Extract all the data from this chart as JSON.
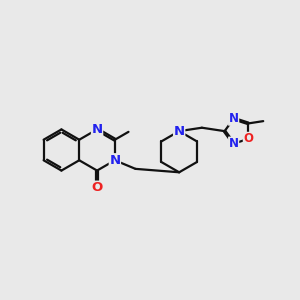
{
  "bg": "#e9e9e9",
  "bc": "#111111",
  "Nc": "#2222ee",
  "Oc": "#ee2222",
  "lw": 1.6,
  "figsize": [
    3.0,
    3.0
  ],
  "dpi": 100,
  "xlim": [
    -1.0,
    9.5
  ],
  "ylim": [
    1.5,
    7.5
  ]
}
